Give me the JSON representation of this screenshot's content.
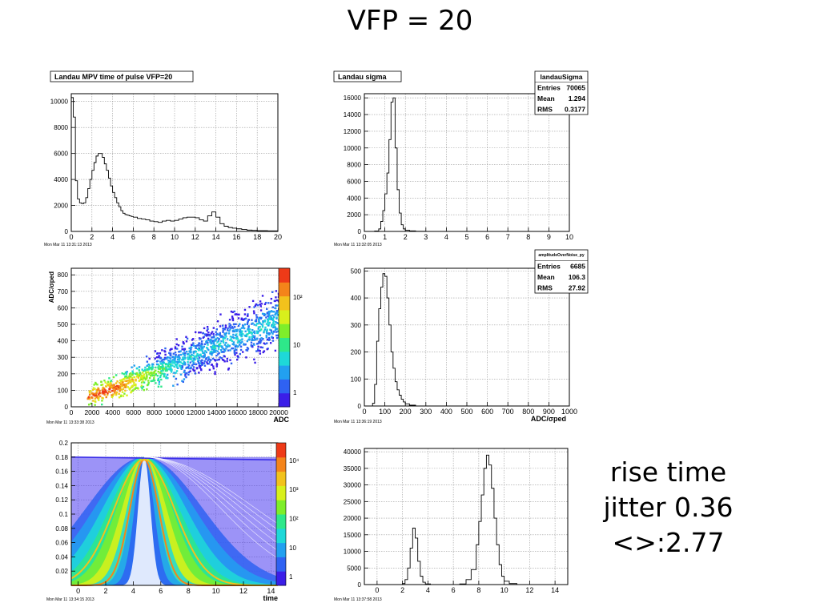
{
  "slide": {
    "title": "VFP = 20",
    "notes": [
      "rise time",
      "jitter 0.36",
      "<>:2.77"
    ]
  },
  "colors": {
    "hist_line": "#000000",
    "grid": "#9a9a9a",
    "frame": "#000000"
  },
  "chart_data": [
    {
      "id": "p1",
      "type": "histogram",
      "title": "Landau MPV time of pulse VFP=20",
      "timestamp": "Mon Mar 11 13:31:13 2013",
      "xlim": [
        0,
        20
      ],
      "ylim": [
        0,
        10600
      ],
      "xticks": [
        0,
        2,
        4,
        6,
        8,
        10,
        12,
        14,
        16,
        18,
        20
      ],
      "yticks": [
        0,
        2000,
        4000,
        6000,
        8000,
        10000
      ],
      "x": [
        0,
        0.2,
        0.4,
        0.6,
        0.8,
        1.0,
        1.2,
        1.4,
        1.6,
        1.8,
        2.0,
        2.2,
        2.4,
        2.6,
        2.8,
        3.0,
        3.2,
        3.4,
        3.6,
        3.8,
        4.0,
        4.2,
        4.4,
        4.6,
        4.8,
        5.0,
        5.2,
        5.4,
        5.6,
        5.8,
        6.0,
        6.4,
        6.8,
        7.2,
        7.6,
        8.0,
        8.4,
        8.8,
        9.2,
        9.6,
        10.0,
        10.4,
        10.8,
        11.2,
        11.6,
        12.0,
        12.4,
        12.8,
        13.2,
        13.6,
        14.0,
        14.4,
        14.8,
        15.2,
        15.6,
        16.0,
        16.5,
        17.0,
        17.5,
        18.0,
        19.0,
        20.0
      ],
      "y": [
        10300,
        8800,
        3900,
        2500,
        2200,
        2150,
        2200,
        2600,
        3300,
        4000,
        4700,
        5300,
        5800,
        6000,
        6000,
        5700,
        5200,
        4700,
        4100,
        3500,
        3000,
        2600,
        2200,
        1900,
        1600,
        1400,
        1300,
        1250,
        1200,
        1150,
        1100,
        1000,
        950,
        900,
        800,
        750,
        700,
        800,
        850,
        800,
        850,
        950,
        1050,
        1100,
        1100,
        1050,
        900,
        800,
        1200,
        1500,
        1100,
        600,
        400,
        300,
        250,
        200,
        150,
        100,
        80,
        60,
        40,
        30
      ]
    },
    {
      "id": "p2",
      "type": "histogram",
      "title": "Landau sigma",
      "timestamp": "Mon Mar 11 13:32:05 2013",
      "stats": {
        "name": "landauSigma",
        "rows": [
          [
            "Entries",
            "70065"
          ],
          [
            "Mean",
            "1.294"
          ],
          [
            "RMS",
            "0.3177"
          ]
        ]
      },
      "xlim": [
        0,
        10
      ],
      "ylim": [
        0,
        16500
      ],
      "xticks": [
        0,
        1,
        2,
        3,
        4,
        5,
        6,
        7,
        8,
        9,
        10
      ],
      "yticks": [
        0,
        2000,
        4000,
        6000,
        8000,
        10000,
        12000,
        14000,
        16000
      ],
      "x": [
        0,
        0.5,
        0.7,
        0.8,
        0.9,
        1.0,
        1.1,
        1.2,
        1.3,
        1.4,
        1.5,
        1.6,
        1.7,
        1.8,
        1.9,
        2.0,
        2.2,
        2.5,
        3.0,
        10.0
      ],
      "y": [
        0,
        50,
        300,
        1200,
        2500,
        4500,
        7000,
        11000,
        15500,
        16000,
        10000,
        5000,
        2200,
        800,
        300,
        150,
        60,
        20,
        5,
        0
      ]
    },
    {
      "id": "p3",
      "type": "heatmap",
      "timestamp": "Mon Mar 11 13:33:38 2013",
      "xlabel": "ADC",
      "ylabel": "ADC/σped",
      "xlim": [
        0,
        21000
      ],
      "ylim": [
        0,
        840
      ],
      "xticks": [
        0,
        2000,
        4000,
        6000,
        8000,
        10000,
        12000,
        14000,
        16000,
        18000,
        20000
      ],
      "yticks": [
        0,
        100,
        200,
        300,
        400,
        500,
        600,
        700,
        800
      ],
      "zscale": "log",
      "zticks": [
        "1",
        "10",
        "10²"
      ],
      "band": {
        "x_start": 1500,
        "x_end": 20500,
        "slope": 0.0255,
        "offset": 20,
        "hotspot": [
          3500,
          90
        ]
      }
    },
    {
      "id": "p4",
      "type": "histogram",
      "timestamp": "Mon Mar 11 13:36:19 2013",
      "xlabel": "ADC/σped",
      "stats": {
        "name": "amplitudeOverNoise_py",
        "rows": [
          [
            "Entries",
            "6685"
          ],
          [
            "Mean",
            "106.3"
          ],
          [
            "RMS",
            "27.92"
          ]
        ]
      },
      "xlim": [
        0,
        1000
      ],
      "ylim": [
        0,
        510
      ],
      "xticks": [
        0,
        100,
        200,
        300,
        400,
        500,
        600,
        700,
        800,
        900,
        1000
      ],
      "yticks": [
        0,
        100,
        200,
        300,
        400,
        500
      ],
      "x": [
        0,
        40,
        50,
        60,
        70,
        80,
        90,
        100,
        110,
        120,
        130,
        140,
        150,
        160,
        170,
        180,
        190,
        200,
        220,
        250,
        1000
      ],
      "y": [
        0,
        10,
        80,
        240,
        360,
        440,
        490,
        480,
        400,
        300,
        200,
        140,
        90,
        60,
        40,
        25,
        15,
        8,
        3,
        0,
        0
      ]
    },
    {
      "id": "p5",
      "type": "heatmap",
      "timestamp": "Mon Mar 11 13:34:15 2013",
      "xlabel": "time",
      "xlim": [
        -0.5,
        14.5
      ],
      "ylim": [
        0,
        0.2
      ],
      "xticks": [
        0,
        2,
        4,
        6,
        8,
        10,
        12,
        14
      ],
      "yticks": [
        0.02,
        0.04,
        0.06,
        0.08,
        0.1,
        0.12,
        0.14,
        0.16,
        0.18,
        0.2
      ],
      "zscale": "log",
      "zticks": [
        "1",
        "10",
        "10²",
        "10³",
        "10⁴"
      ],
      "pulse": {
        "peak_time": 4.8,
        "peak_value": 0.18
      }
    },
    {
      "id": "p6",
      "type": "histogram",
      "timestamp": "Mon Mar 11 13:37:58 2013",
      "xlim": [
        -1,
        15
      ],
      "ylim": [
        0,
        41000
      ],
      "xticks": [
        0,
        2,
        4,
        6,
        8,
        10,
        12,
        14
      ],
      "yticks": [
        0,
        5000,
        10000,
        15000,
        20000,
        25000,
        30000,
        35000,
        40000
      ],
      "x": [
        -1,
        1.5,
        2.0,
        2.2,
        2.4,
        2.6,
        2.8,
        3.0,
        3.2,
        3.4,
        3.6,
        3.8,
        4.2,
        5.5,
        6.5,
        7.0,
        7.4,
        7.8,
        8.0,
        8.2,
        8.4,
        8.6,
        8.8,
        9.0,
        9.2,
        9.4,
        9.6,
        9.8,
        10.0,
        10.4,
        11.0,
        15.0
      ],
      "y": [
        0,
        0,
        300,
        1500,
        5000,
        11000,
        17000,
        14000,
        7000,
        2500,
        700,
        200,
        0,
        0,
        200,
        1500,
        4500,
        12000,
        19000,
        27000,
        35000,
        39000,
        36000,
        29000,
        20000,
        12000,
        6000,
        2500,
        1000,
        300,
        0,
        0
      ]
    }
  ]
}
